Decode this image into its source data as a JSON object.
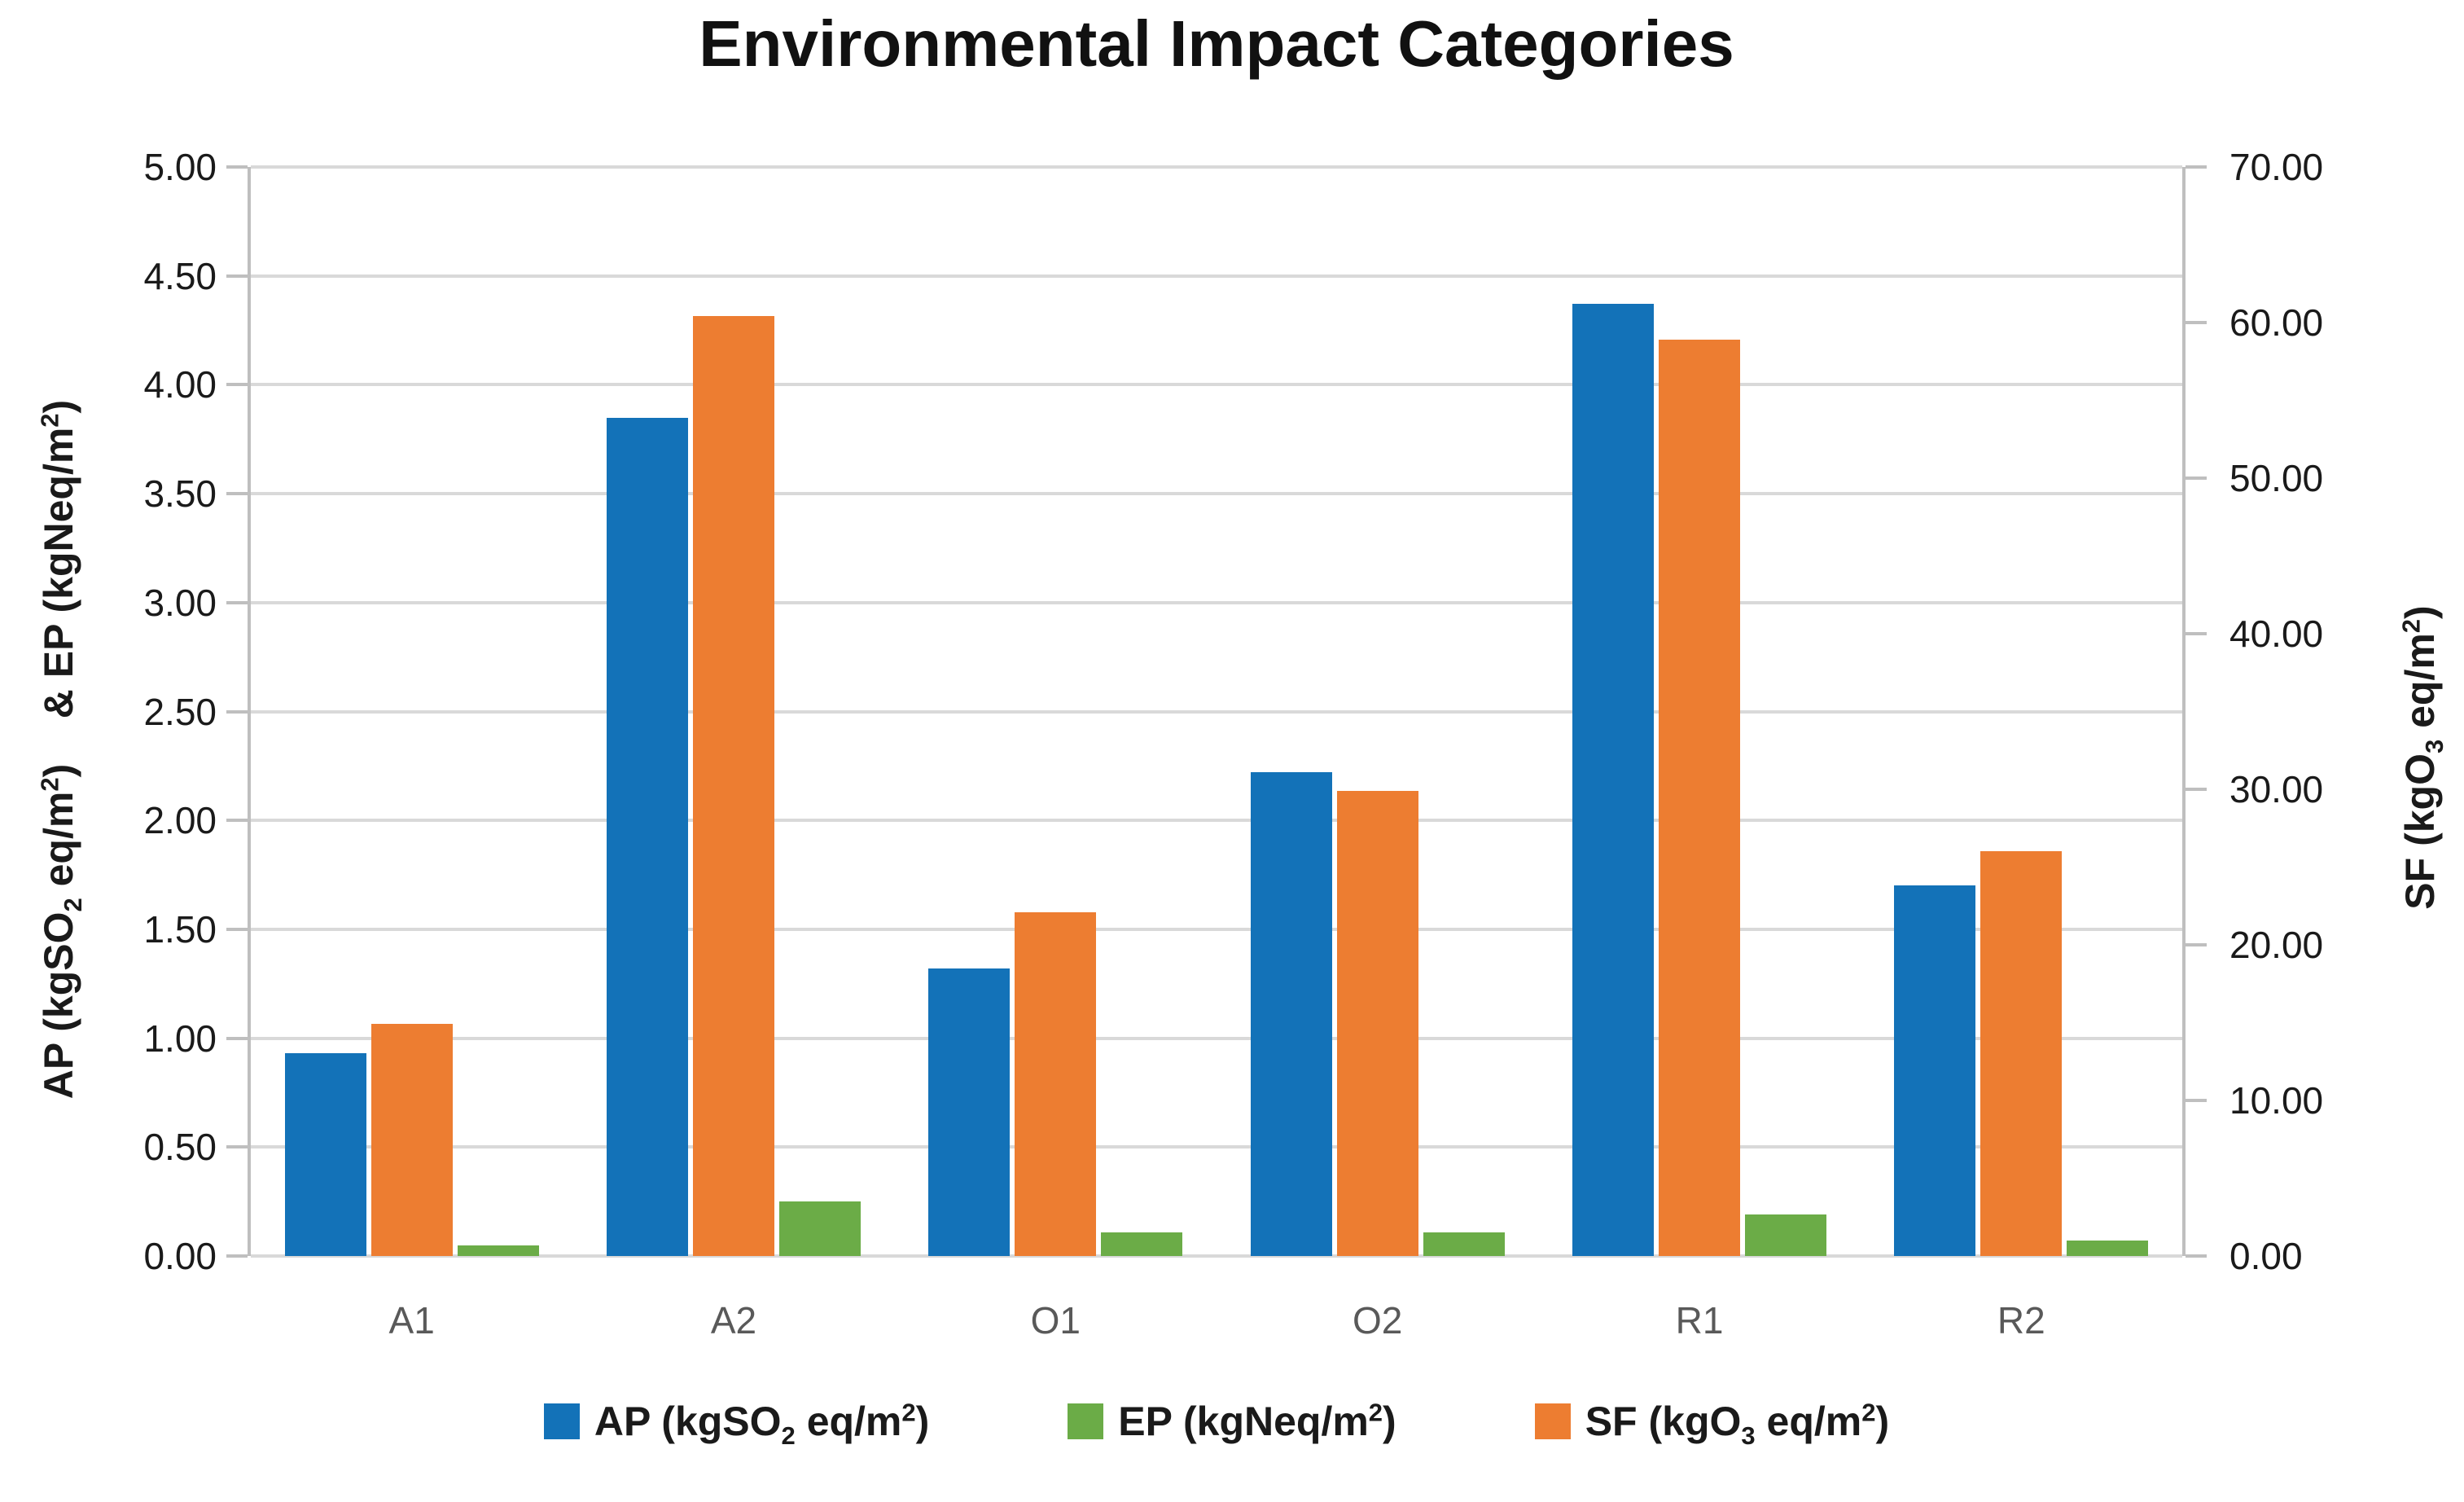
{
  "chart_data": {
    "type": "bar",
    "title": "Environmental Impact Categories",
    "categories": [
      "A1",
      "A2",
      "O1",
      "O2",
      "R1",
      "R2"
    ],
    "series": [
      {
        "short": "AP",
        "name": "AP (kgSO2 eq/m2)",
        "axis": "left",
        "color": "#1372B8",
        "values": [
          0.93,
          3.85,
          1.32,
          2.22,
          4.37,
          1.7
        ],
        "label_rich": [
          [
            "t",
            "AP (kgSO"
          ],
          [
            "sub",
            "2"
          ],
          [
            "t",
            " eq/m"
          ],
          [
            "sup",
            "2"
          ],
          [
            "t",
            ")"
          ]
        ]
      },
      {
        "short": "SF",
        "name": "SF (kgO3 eq/m2)",
        "axis": "right",
        "color": "#ED7D31",
        "values": [
          14.9,
          60.4,
          22.1,
          29.9,
          58.9,
          26.0
        ],
        "label_rich": [
          [
            "t",
            "SF (kgO"
          ],
          [
            "sub",
            "3"
          ],
          [
            "t",
            " eq/m"
          ],
          [
            "sup",
            "2"
          ],
          [
            "t",
            ")"
          ]
        ]
      },
      {
        "short": "EP",
        "name": "EP (kgNeq/m2)",
        "axis": "left",
        "color": "#6BAC47",
        "values": [
          0.05,
          0.25,
          0.11,
          0.11,
          0.19,
          0.07
        ],
        "label_rich": [
          [
            "t",
            "EP (kgNeq/m"
          ],
          [
            "sup",
            "2"
          ],
          [
            "t",
            ")"
          ]
        ]
      }
    ],
    "legend_series_order": [
      0,
      2,
      1
    ],
    "legend_position": "bottom",
    "grid": true,
    "left_axis": {
      "min": 0,
      "max": 5,
      "step": 0.5,
      "tick_labels": [
        "5.00",
        "4.50",
        "4.00",
        "3.50",
        "3.00",
        "2.50",
        "2.00",
        "1.50",
        "1.00",
        "0.50",
        "0.00"
      ],
      "title": "AP (kgSO2 eq/m2)    & EP (kgNeq/m2)",
      "title_rich": [
        [
          "t",
          "AP (kgSO"
        ],
        [
          "sub",
          "2"
        ],
        [
          "t",
          " eq/m"
        ],
        [
          "sup",
          "2"
        ],
        [
          "t",
          ")    & EP (kgNeq/m"
        ],
        [
          "sup",
          "2"
        ],
        [
          "t",
          ")"
        ]
      ]
    },
    "right_axis": {
      "min": 0,
      "max": 70,
      "step": 10,
      "tick_labels": [
        "70.00",
        "60.00",
        "50.00",
        "40.00",
        "30.00",
        "20.00",
        "10.00",
        "0.00"
      ],
      "title": "SF (kgO3 eq/m2)",
      "title_rich": [
        [
          "t",
          "SF (kgO"
        ],
        [
          "sub",
          "3"
        ],
        [
          "t",
          " eq/m"
        ],
        [
          "sup",
          "2"
        ],
        [
          "t",
          ")"
        ]
      ]
    }
  }
}
